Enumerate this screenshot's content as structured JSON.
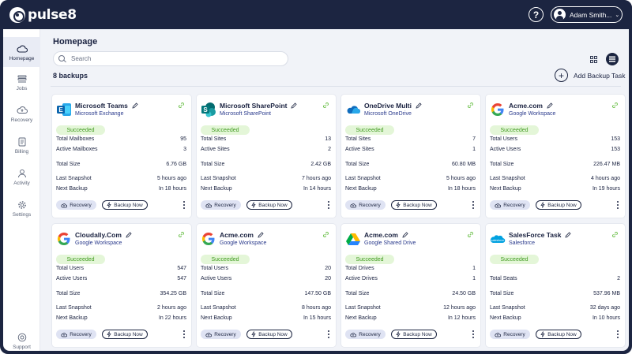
{
  "app": {
    "logo_text": "pulse8"
  },
  "header": {
    "help_label": "?",
    "user_name": "Adam Smith..."
  },
  "sidebar": {
    "items": [
      {
        "label": "Homepage",
        "icon": "cloud-icon",
        "active": true
      },
      {
        "label": "Jobs",
        "icon": "list-icon",
        "active": false
      },
      {
        "label": "Recovery",
        "icon": "cloud-upload-icon",
        "active": false
      },
      {
        "label": "Billing",
        "icon": "invoice-icon",
        "active": false
      },
      {
        "label": "Activity",
        "icon": "user-icon",
        "active": false
      },
      {
        "label": "Settings",
        "icon": "gear-icon",
        "active": false
      }
    ],
    "support_label": "Support"
  },
  "main": {
    "title": "Homepage",
    "search_placeholder": "Search",
    "backup_count": "8 backups",
    "add_backup_label": "Add Backup Task"
  },
  "cards": [
    {
      "name": "Microsoft Teams",
      "service": "Microsoft Exchange",
      "logo": "exchange-logo",
      "status": "Succeeded",
      "metrics": [
        {
          "label": "Total Mailboxes",
          "value": "95"
        },
        {
          "label": "Active Mailboxes",
          "value": "3"
        }
      ],
      "total_size": {
        "label": "Total Size",
        "value": "6.76 GB"
      },
      "last_snapshot": {
        "label": "Last Snapshot",
        "value": "5 hours ago"
      },
      "next_backup": {
        "label": "Next Backup",
        "value": "In 18 hours"
      },
      "recovery_label": "Recovery",
      "backup_label": "Backup Now"
    },
    {
      "name": "Microsoft SharePoint",
      "service": "Microsoft SharePoint",
      "logo": "sharepoint-logo",
      "status": "Succeeded",
      "metrics": [
        {
          "label": "Total Sites",
          "value": "13"
        },
        {
          "label": "Active Sites",
          "value": "2"
        }
      ],
      "total_size": {
        "label": "Total Size",
        "value": "2.42 GB"
      },
      "last_snapshot": {
        "label": "Last Snapshot",
        "value": "7 hours ago"
      },
      "next_backup": {
        "label": "Next Backup",
        "value": "In 14 hours"
      },
      "recovery_label": "Recovery",
      "backup_label": "Backup Now"
    },
    {
      "name": "OneDrive Multi",
      "service": "Microsoft OneDrive",
      "logo": "onedrive-logo",
      "status": "Succeeded",
      "metrics": [
        {
          "label": "Total Sites",
          "value": "7"
        },
        {
          "label": "Active Sites",
          "value": "1"
        }
      ],
      "total_size": {
        "label": "Total Size",
        "value": "60.80 MB"
      },
      "last_snapshot": {
        "label": "Last Snapshot",
        "value": "5 hours ago"
      },
      "next_backup": {
        "label": "Next Backup",
        "value": "In 18 hours"
      },
      "recovery_label": "Recovery",
      "backup_label": "Backup Now"
    },
    {
      "name": "Acme.com",
      "service": "Google Workspace",
      "logo": "google-logo",
      "status": "Succeeded",
      "metrics": [
        {
          "label": "Total Users",
          "value": "153"
        },
        {
          "label": "Active Users",
          "value": "153"
        }
      ],
      "total_size": {
        "label": "Total Size",
        "value": "226.47 MB"
      },
      "last_snapshot": {
        "label": "Last Snapshot",
        "value": "4 hours ago"
      },
      "next_backup": {
        "label": "Next Backup",
        "value": "In 19 hours"
      },
      "recovery_label": "Recovery",
      "backup_label": "Backup Now"
    },
    {
      "name": "Cloudally.Com",
      "service": "Google Workspace",
      "logo": "google-logo",
      "status": "Succeeded",
      "metrics": [
        {
          "label": "Total Users",
          "value": "547"
        },
        {
          "label": "Active Users",
          "value": "547"
        }
      ],
      "total_size": {
        "label": "Total Size",
        "value": "354.25 GB"
      },
      "last_snapshot": {
        "label": "Last Snapshot",
        "value": "2 hours ago"
      },
      "next_backup": {
        "label": "Next Backup",
        "value": "In 22 hours"
      },
      "recovery_label": "Recovery",
      "backup_label": "Backup Now"
    },
    {
      "name": "Acme.com",
      "service": "Google Workspace",
      "logo": "google-logo",
      "status": "Succeeded",
      "metrics": [
        {
          "label": "Total Users",
          "value": "20"
        },
        {
          "label": "Active Users",
          "value": "20"
        }
      ],
      "total_size": {
        "label": "Total Size",
        "value": "147.50 GB"
      },
      "last_snapshot": {
        "label": "Last Snapshot",
        "value": "8 hours ago"
      },
      "next_backup": {
        "label": "Next Backup",
        "value": "In 15 hours"
      },
      "recovery_label": "Recovery",
      "backup_label": "Backup Now"
    },
    {
      "name": "Acme.com",
      "service": "Google Shared Drive",
      "logo": "google-drive-logo",
      "status": "Succeeded",
      "metrics": [
        {
          "label": "Total Drives",
          "value": "1"
        },
        {
          "label": "Active Drives",
          "value": "1"
        }
      ],
      "total_size": {
        "label": "Total Size",
        "value": "24.50 GB"
      },
      "last_snapshot": {
        "label": "Last Snapshot",
        "value": "12 hours ago"
      },
      "next_backup": {
        "label": "Next Backup",
        "value": "In 12 hours"
      },
      "recovery_label": "Recovery",
      "backup_label": "Backup Now"
    },
    {
      "name": "SalesForce Task",
      "service": "Salesforce",
      "logo": "salesforce-logo",
      "status": "Succeeded",
      "metrics": [
        {
          "label": "Total Seats",
          "value": "2"
        }
      ],
      "total_size": {
        "label": "Total Size",
        "value": "537.96 MB"
      },
      "last_snapshot": {
        "label": "Last Snapshot",
        "value": "32 days ago"
      },
      "next_backup": {
        "label": "Next Backup",
        "value": "In 10 hours"
      },
      "recovery_label": "Recovery",
      "backup_label": "Backup Now"
    }
  ]
}
